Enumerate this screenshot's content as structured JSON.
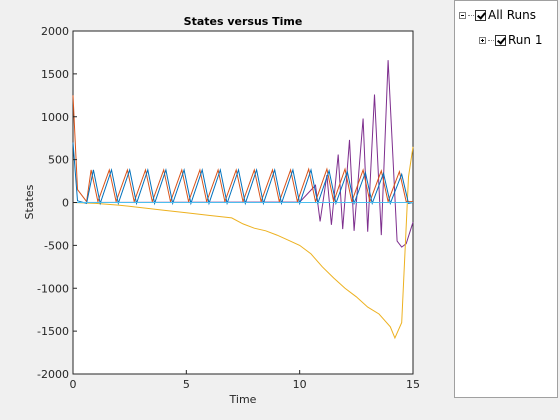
{
  "chart_data": {
    "type": "line",
    "title": "States versus Time",
    "xlabel": "Time",
    "ylabel": "States",
    "xlim": [
      0,
      15
    ],
    "ylim": [
      -2000,
      2000
    ],
    "x_ticks": [
      0,
      5,
      10,
      15
    ],
    "y_ticks": [
      -2000,
      -1500,
      -1000,
      -500,
      0,
      500,
      1000,
      1500,
      2000
    ],
    "grid": false,
    "series": [
      {
        "color": "#7e2f8e",
        "points": [
          [
            0,
            0
          ],
          [
            10.0,
            5
          ],
          [
            10.7,
            200
          ],
          [
            10.9,
            -220
          ],
          [
            11.2,
            320
          ],
          [
            11.4,
            -260
          ],
          [
            11.7,
            560
          ],
          [
            11.9,
            -310
          ],
          [
            12.2,
            730
          ],
          [
            12.4,
            -330
          ],
          [
            12.8,
            980
          ],
          [
            13.0,
            -340
          ],
          [
            13.3,
            1260
          ],
          [
            13.6,
            -380
          ],
          [
            13.9,
            1660
          ],
          [
            14.3,
            -450
          ],
          [
            14.5,
            -520
          ],
          [
            14.7,
            -480
          ],
          [
            15,
            -230
          ]
        ]
      },
      {
        "color": "#edb120",
        "points": [
          [
            0,
            0
          ],
          [
            1,
            -10
          ],
          [
            2,
            -30
          ],
          [
            3,
            -60
          ],
          [
            4,
            -90
          ],
          [
            5,
            -120
          ],
          [
            6,
            -150
          ],
          [
            7,
            -180
          ],
          [
            7.5,
            -250
          ],
          [
            8,
            -300
          ],
          [
            8.5,
            -330
          ],
          [
            9,
            -380
          ],
          [
            9.5,
            -440
          ],
          [
            10,
            -500
          ],
          [
            10.5,
            -600
          ],
          [
            11,
            -750
          ],
          [
            11.5,
            -880
          ],
          [
            12,
            -1000
          ],
          [
            12.5,
            -1100
          ],
          [
            13,
            -1220
          ],
          [
            13.5,
            -1300
          ],
          [
            14,
            -1450
          ],
          [
            14.2,
            -1580
          ],
          [
            14.5,
            -1400
          ],
          [
            14.8,
            300
          ],
          [
            15,
            650
          ]
        ]
      },
      {
        "color": "#d95319",
        "points": [
          [
            0,
            1250
          ],
          [
            0.2,
            150
          ],
          [
            0.6,
            10
          ],
          [
            0.8,
            380
          ],
          [
            1.1,
            10
          ],
          [
            1.6,
            380
          ],
          [
            1.9,
            10
          ],
          [
            2.4,
            380
          ],
          [
            2.7,
            10
          ],
          [
            3.2,
            380
          ],
          [
            3.5,
            10
          ],
          [
            4.0,
            380
          ],
          [
            4.3,
            10
          ],
          [
            4.8,
            380
          ],
          [
            5.1,
            10
          ],
          [
            5.6,
            380
          ],
          [
            5.9,
            10
          ],
          [
            6.4,
            380
          ],
          [
            6.7,
            10
          ],
          [
            7.2,
            380
          ],
          [
            7.5,
            10
          ],
          [
            8.0,
            380
          ],
          [
            8.3,
            10
          ],
          [
            8.8,
            380
          ],
          [
            9.1,
            10
          ],
          [
            9.6,
            380
          ],
          [
            9.9,
            10
          ],
          [
            10.4,
            390
          ],
          [
            10.7,
            10
          ],
          [
            11.2,
            390
          ],
          [
            11.5,
            10
          ],
          [
            12.0,
            390
          ],
          [
            12.3,
            10
          ],
          [
            12.8,
            380
          ],
          [
            13.1,
            10
          ],
          [
            13.6,
            370
          ],
          [
            13.9,
            10
          ],
          [
            14.4,
            360
          ],
          [
            14.7,
            10
          ],
          [
            15,
            10
          ]
        ]
      },
      {
        "color": "#0072bd",
        "points": [
          [
            0,
            700
          ],
          [
            0.2,
            20
          ],
          [
            0.6,
            -10
          ],
          [
            0.9,
            380
          ],
          [
            1.2,
            -10
          ],
          [
            1.7,
            380
          ],
          [
            2.0,
            -10
          ],
          [
            2.5,
            380
          ],
          [
            2.8,
            -10
          ],
          [
            3.3,
            380
          ],
          [
            3.6,
            -10
          ],
          [
            4.1,
            380
          ],
          [
            4.4,
            -10
          ],
          [
            4.9,
            380
          ],
          [
            5.2,
            -10
          ],
          [
            5.7,
            380
          ],
          [
            6.0,
            -10
          ],
          [
            6.5,
            380
          ],
          [
            6.8,
            -10
          ],
          [
            7.3,
            380
          ],
          [
            7.6,
            -10
          ],
          [
            8.1,
            380
          ],
          [
            8.4,
            -10
          ],
          [
            8.9,
            380
          ],
          [
            9.2,
            -10
          ],
          [
            9.7,
            380
          ],
          [
            10.0,
            -10
          ],
          [
            10.5,
            380
          ],
          [
            10.8,
            -10
          ],
          [
            11.3,
            370
          ],
          [
            11.6,
            -10
          ],
          [
            12.1,
            360
          ],
          [
            12.4,
            -10
          ],
          [
            12.9,
            350
          ],
          [
            13.2,
            -10
          ],
          [
            13.7,
            340
          ],
          [
            14.0,
            -10
          ],
          [
            14.5,
            330
          ],
          [
            14.8,
            -10
          ],
          [
            15,
            0
          ]
        ]
      },
      {
        "color": "#4dbeee",
        "points": [
          [
            0,
            0
          ],
          [
            15,
            0
          ]
        ]
      }
    ]
  },
  "tree": {
    "root_label": "All Runs",
    "run_label": "Run 1"
  }
}
